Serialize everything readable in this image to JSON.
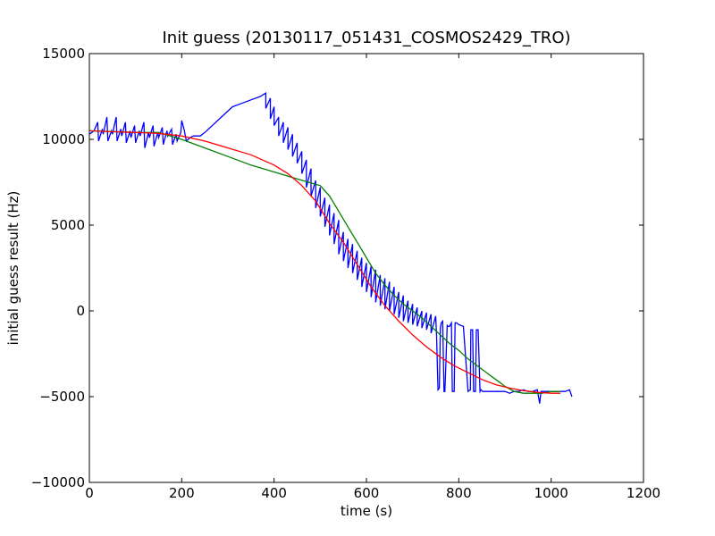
{
  "chart_data": {
    "type": "line",
    "title": "Init guess (20130117_051431_COSMOS2429_TRO)",
    "xlabel": "time (s)",
    "ylabel": "initial guess result (Hz)",
    "xlim": [
      0,
      1200
    ],
    "ylim": [
      -10000,
      15000
    ],
    "xticks": [
      0,
      200,
      400,
      600,
      800,
      1000,
      1200
    ],
    "yticks": [
      -10000,
      -5000,
      0,
      5000,
      10000,
      15000
    ],
    "xtick_labels": [
      "0",
      "200",
      "400",
      "600",
      "800",
      "1000",
      "1200"
    ],
    "ytick_labels": [
      "−10000",
      "−5000",
      "0",
      "5000",
      "10000",
      "15000"
    ],
    "grid": false,
    "series": [
      {
        "color": "#0000ff",
        "x": [
          0,
          10,
          18,
          20,
          28,
          30,
          38,
          40,
          48,
          50,
          58,
          60,
          68,
          70,
          78,
          80,
          88,
          90,
          98,
          100,
          108,
          110,
          118,
          120,
          128,
          130,
          138,
          140,
          148,
          150,
          158,
          160,
          168,
          170,
          178,
          180,
          188,
          190,
          198,
          200,
          205,
          210,
          218,
          225,
          240,
          250,
          270,
          290,
          310,
          330,
          350,
          370,
          382,
          382,
          392,
          392,
          400,
          400,
          410,
          410,
          420,
          420,
          430,
          430,
          440,
          440,
          450,
          450,
          460,
          460,
          470,
          470,
          480,
          480,
          490,
          490,
          500,
          500,
          510,
          510,
          520,
          520,
          530,
          530,
          540,
          540,
          550,
          550,
          560,
          560,
          570,
          570,
          580,
          580,
          590,
          590,
          600,
          600,
          610,
          610,
          620,
          620,
          630,
          630,
          640,
          640,
          650,
          650,
          660,
          660,
          670,
          670,
          680,
          680,
          690,
          690,
          700,
          700,
          710,
          710,
          720,
          720,
          730,
          730,
          740,
          740,
          750,
          752,
          755,
          758,
          760,
          762,
          765,
          768,
          770,
          775,
          775,
          780,
          784,
          786,
          790,
          792,
          795,
          800,
          810,
          820,
          825,
          826,
          830,
          832,
          836,
          838,
          842,
          846,
          848,
          852,
          856,
          860,
          870,
          880,
          890,
          900,
          910,
          920,
          930,
          940,
          950,
          960,
          970,
          975,
          978,
          980,
          990,
          1000,
          1010,
          1020,
          1030,
          1040,
          1045
        ],
        "y": [
          10300,
          10500,
          11000,
          9900,
          10600,
          10300,
          11300,
          9900,
          10500,
          10300,
          11300,
          9900,
          10600,
          10200,
          11000,
          9800,
          10500,
          10100,
          10800,
          9800,
          10500,
          10200,
          11000,
          9500,
          10400,
          10100,
          10800,
          9600,
          10400,
          10100,
          10700,
          9700,
          10500,
          10200,
          10600,
          9700,
          10300,
          9900,
          10400,
          11100,
          10600,
          9900,
          10100,
          10200,
          10200,
          10400,
          10900,
          11400,
          11900,
          12100,
          12300,
          12500,
          12700,
          11800,
          12400,
          11200,
          11900,
          10800,
          11300,
          10200,
          11000,
          9800,
          10700,
          9400,
          10300,
          9000,
          9800,
          8600,
          9300,
          8000,
          8800,
          7200,
          8300,
          6700,
          7600,
          6000,
          7200,
          5500,
          6600,
          4900,
          6200,
          4400,
          5700,
          3900,
          5300,
          3300,
          4600,
          2900,
          4200,
          2500,
          3900,
          2200,
          3500,
          1800,
          3100,
          1400,
          2800,
          1100,
          2600,
          800,
          2400,
          500,
          2100,
          300,
          1900,
          100,
          1700,
          0,
          1400,
          -200,
          1100,
          -400,
          900,
          -600,
          600,
          -700,
          400,
          -800,
          200,
          -900,
          0,
          -1000,
          -100,
          -1100,
          -200,
          -1300,
          -300,
          -1500,
          -4600,
          -4500,
          -1000,
          -700,
          -600,
          -4700,
          -4700,
          -800,
          -900,
          -900,
          -700,
          -4700,
          -4700,
          -700,
          -700,
          -800,
          -900,
          -4700,
          -4600,
          -1100,
          -1100,
          -4700,
          -4700,
          -1100,
          -1100,
          -4700,
          -4600,
          -4700,
          -4700,
          -4700,
          -4700,
          -4700,
          -4700,
          -4700,
          -4800,
          -4700,
          -4700,
          -4600,
          -4700,
          -4700,
          -4600,
          -5400,
          -4700,
          -4700,
          -4700,
          -4700,
          -4700,
          -4700,
          -4700,
          -4600,
          -5000
        ]
      },
      {
        "color": "#008000",
        "x": [
          0,
          100,
          150,
          200,
          250,
          300,
          350,
          400,
          450,
          500,
          520,
          540,
          560,
          580,
          600,
          620,
          640,
          660,
          680,
          700,
          720,
          740,
          760,
          780,
          800,
          820,
          840,
          860,
          880,
          900,
          920,
          940,
          960,
          980,
          1000,
          1020
        ],
        "y": [
          10500,
          10400,
          10400,
          10000,
          9500,
          9000,
          8500,
          8100,
          7700,
          7300,
          6700,
          5800,
          4900,
          4000,
          3100,
          2200,
          1500,
          900,
          400,
          0,
          -400,
          -900,
          -1400,
          -1900,
          -2300,
          -2800,
          -3200,
          -3600,
          -4000,
          -4400,
          -4700,
          -4800,
          -4800,
          -4800,
          -4700,
          -4700
        ]
      },
      {
        "color": "#ff0000",
        "x": [
          0,
          50,
          100,
          150,
          200,
          250,
          300,
          350,
          400,
          430,
          460,
          490,
          520,
          550,
          580,
          610,
          640,
          670,
          700,
          730,
          760,
          790,
          820,
          850,
          880,
          910,
          940,
          970,
          1000,
          1020
        ],
        "y": [
          10500,
          10450,
          10400,
          10350,
          10200,
          9900,
          9500,
          9100,
          8500,
          8000,
          7300,
          6400,
          5100,
          4000,
          2700,
          1400,
          300,
          -600,
          -1400,
          -2100,
          -2700,
          -3200,
          -3600,
          -4000,
          -4300,
          -4500,
          -4650,
          -4750,
          -4800,
          -4800
        ]
      }
    ]
  }
}
